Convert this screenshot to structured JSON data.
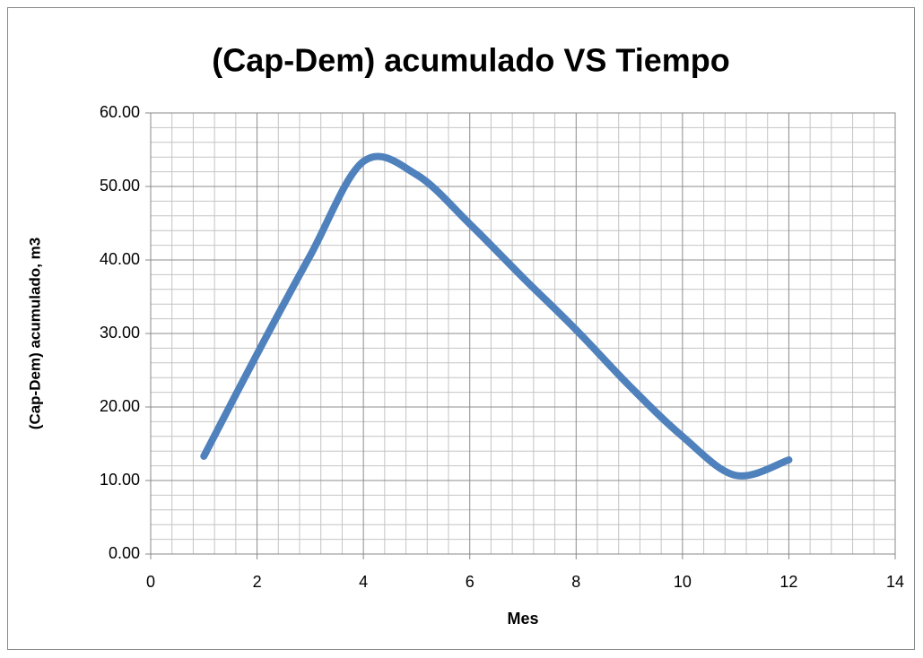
{
  "chart_data": {
    "type": "line",
    "title": "(Cap-Dem) acumulado VS Tiempo",
    "x_label": "Mes",
    "y_label": "(Cap-Dem) acumulado, m3",
    "x": [
      1,
      2,
      3,
      4,
      5,
      6,
      7,
      8,
      9,
      10,
      11,
      12
    ],
    "series": [
      {
        "name": "(Cap-Dem) acumulado",
        "color": "#4f81bd",
        "values": [
          13.3,
          27.2,
          40.6,
          53.4,
          51.6,
          44.9,
          37.6,
          30.5,
          22.9,
          16.0,
          10.7,
          12.8
        ]
      }
    ],
    "smooth": true,
    "xlim": [
      0,
      14
    ],
    "xticks": [
      0,
      2,
      4,
      6,
      8,
      10,
      12,
      14
    ],
    "ylim": [
      0,
      60
    ],
    "yticks": [
      {
        "value": 0,
        "label": "0.00"
      },
      {
        "value": 10,
        "label": "10.00"
      },
      {
        "value": 20,
        "label": "20.00"
      },
      {
        "value": 30,
        "label": "30.00"
      },
      {
        "value": 40,
        "label": "40.00"
      },
      {
        "value": 50,
        "label": "50.00"
      },
      {
        "value": 60,
        "label": "60.00"
      }
    ],
    "grid": true,
    "minor_divisions": 5
  }
}
